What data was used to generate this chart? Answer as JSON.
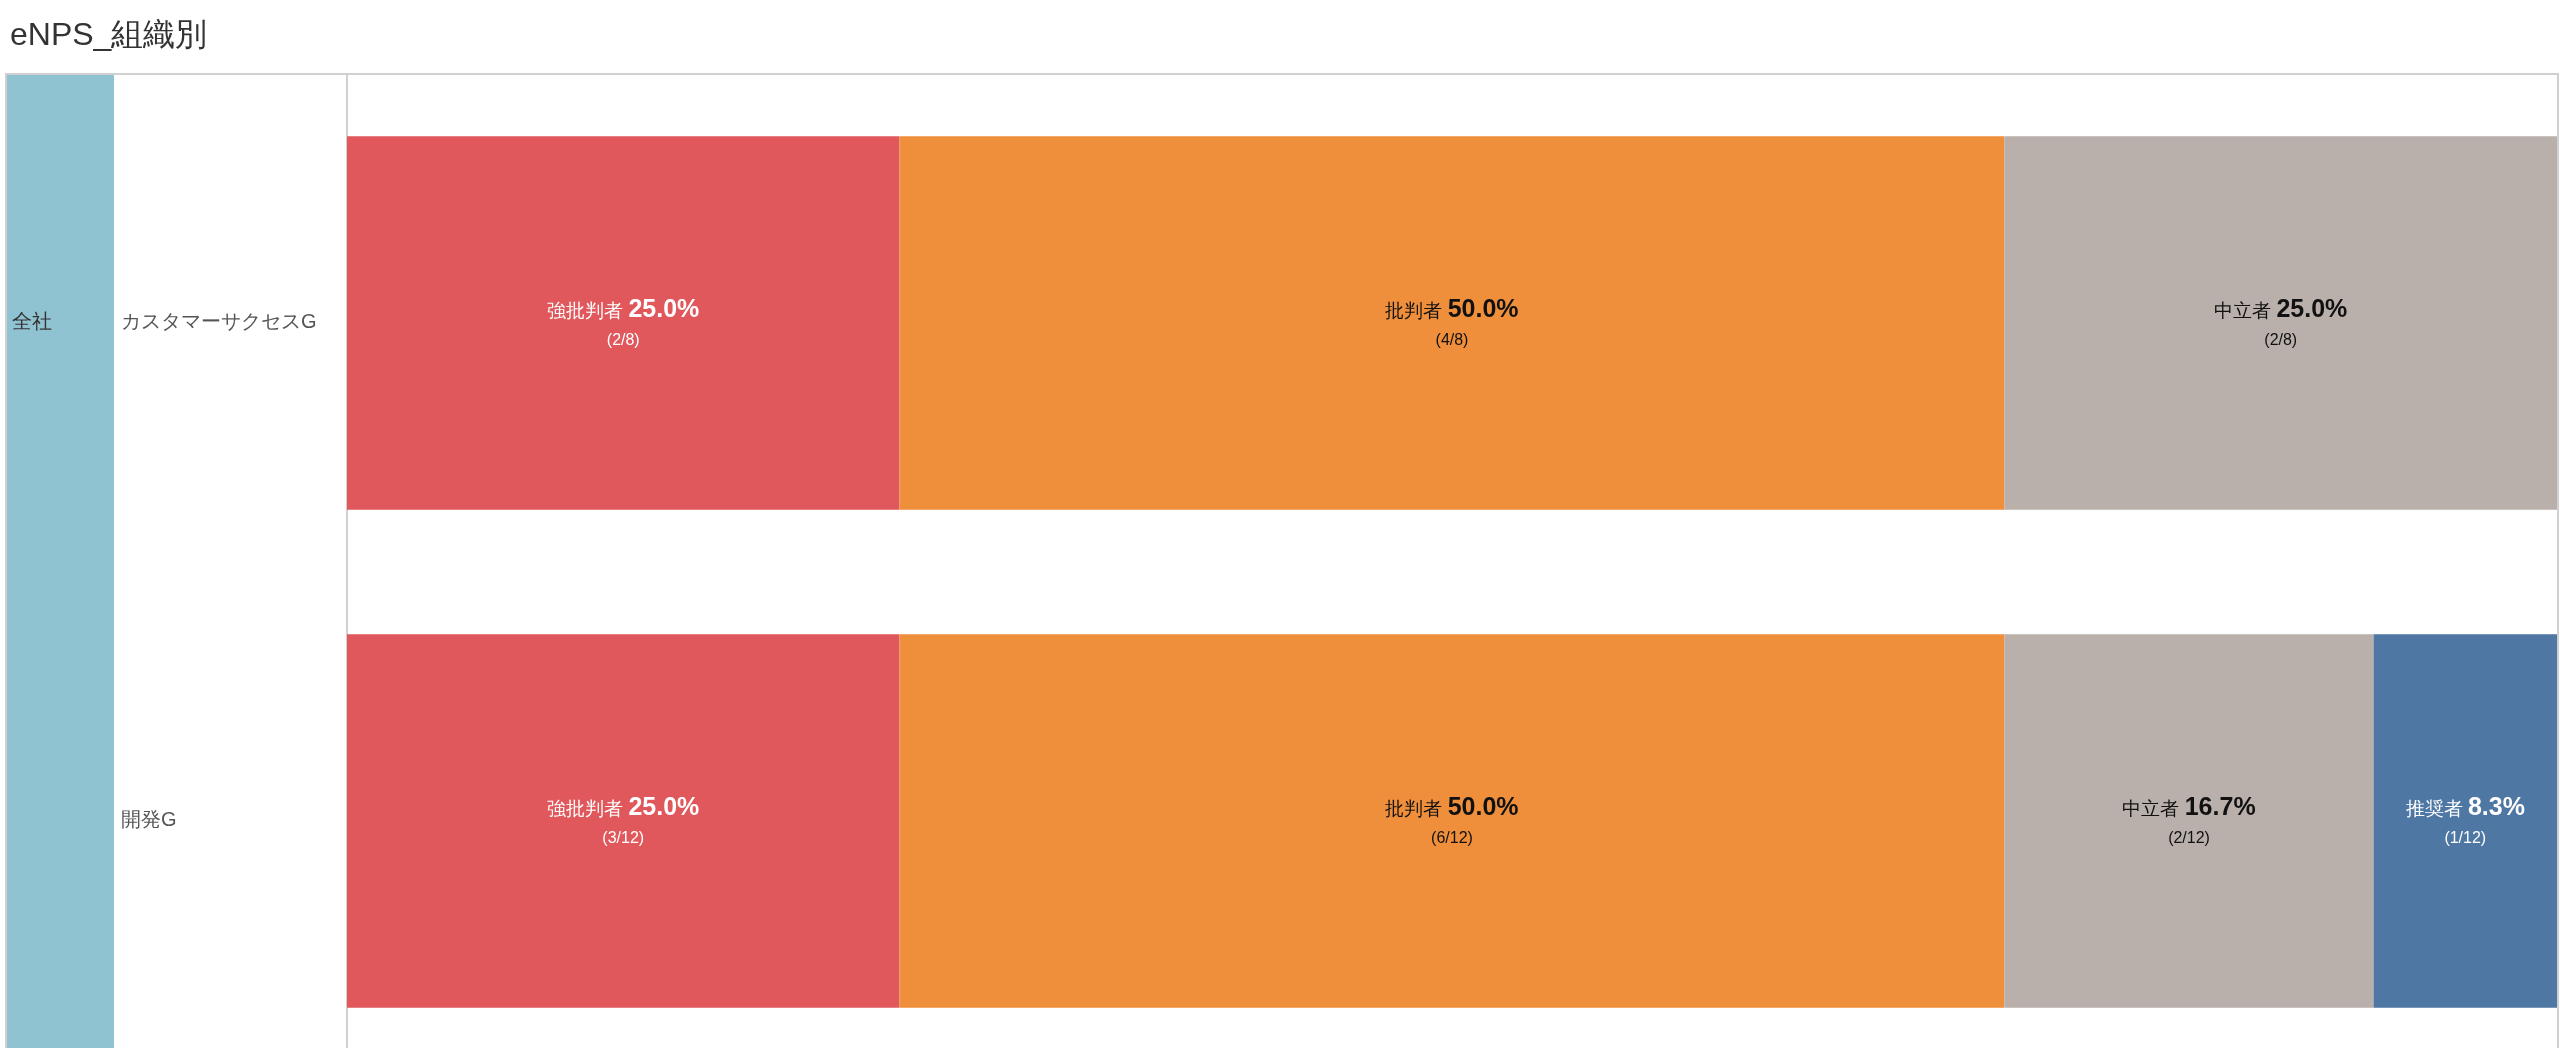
{
  "chart_data": {
    "type": "bar",
    "orientation": "horizontal",
    "stacked": true,
    "title": "eNPS_組織別",
    "categories": [
      "カスタマーサクセスG",
      "開発G"
    ],
    "annotations": [
      "全社"
    ],
    "xlim": [
      0,
      100
    ],
    "tick_labels": "y",
    "series": [
      {
        "name": "強批判者",
        "color": "#e0585c",
        "values": [
          25.0,
          25.0
        ],
        "value_labels": [
          "25.0%\n(2/8)",
          "25.0%\n(3/12)"
        ]
      },
      {
        "name": "批判者",
        "color": "#f08f3b",
        "values": [
          50.0,
          50.0
        ],
        "value_labels": [
          "50.0%\n(4/8)",
          "50.0%\n(6/12)"
        ]
      },
      {
        "name": "中立者",
        "color": "#b9b0ab",
        "values": [
          25.0,
          16.7
        ],
        "value_labels": [
          "25.0%\n(2/8)",
          "16.7%\n(2/12)"
        ]
      },
      {
        "name": "推奨者",
        "color": "#4e77a3",
        "values": [
          null,
          8.3
        ],
        "value_labels": [
          null,
          "8.3%\n(1/12)"
        ]
      }
    ]
  }
}
